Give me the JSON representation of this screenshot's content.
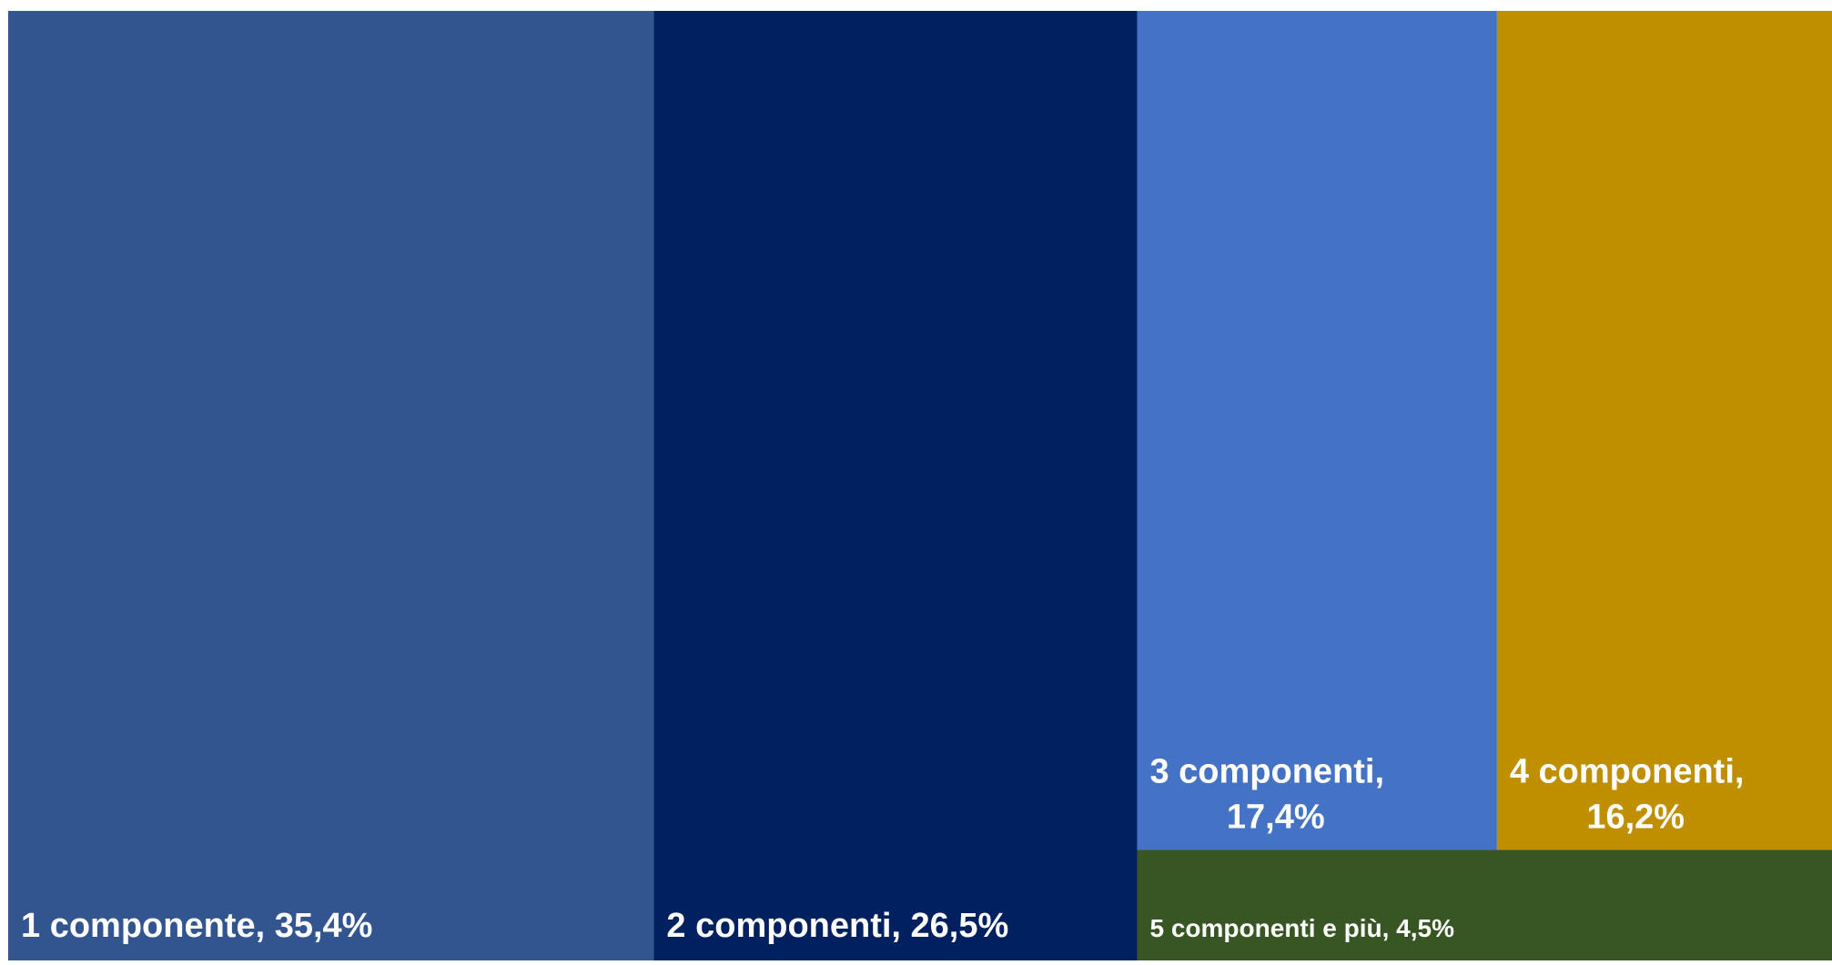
{
  "chart_data": {
    "type": "treemap",
    "title": "",
    "unit": "%",
    "items": [
      {
        "label": "1 componente, 35,4%",
        "lines": [
          "1 componente, 35,4%"
        ],
        "value": 35.4,
        "color": "#32548F"
      },
      {
        "label": "2 componenti, 26,5%",
        "lines": [
          "2 componenti, 26,5%"
        ],
        "value": 26.5,
        "color": "#002060"
      },
      {
        "label": "3 componenti, 17,4%",
        "lines": [
          "3 componenti,",
          "17,4%"
        ],
        "value": 17.4,
        "color": "#4472C4"
      },
      {
        "label": "4 componenti, 16,2%",
        "lines": [
          "4 componenti,",
          "16,2%"
        ],
        "value": 16.2,
        "color": "#BF8F00"
      },
      {
        "label": "5 componenti e più, 4,5%",
        "lines": [
          "5 componenti e più, 4,5%"
        ],
        "value": 4.5,
        "color": "#375623"
      }
    ]
  }
}
